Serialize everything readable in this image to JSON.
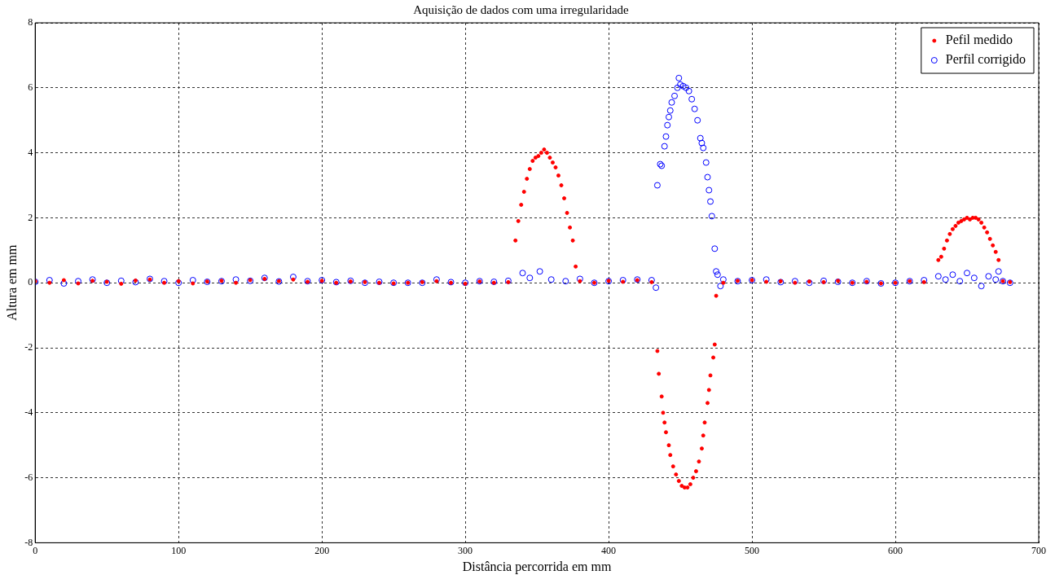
{
  "chart_data": {
    "type": "scatter",
    "title": "Aquisição de dados com uma irregularidade",
    "xlabel": "Distância percorrida em mm",
    "ylabel": "Altura em mm",
    "xlim": [
      0,
      700
    ],
    "xticks": [
      0,
      100,
      200,
      300,
      400,
      500,
      600,
      700
    ],
    "ylim": [
      -8,
      8
    ],
    "yticks": [
      -8,
      -6,
      -4,
      -2,
      0,
      2,
      4,
      6,
      8
    ],
    "grid": true,
    "legend": "top right",
    "marker": "circle",
    "series": [
      {
        "name": "Pefil medido",
        "color": "#ff0000",
        "x": [
          0,
          10,
          20,
          30,
          40,
          50,
          60,
          70,
          80,
          90,
          100,
          110,
          120,
          130,
          140,
          150,
          160,
          170,
          180,
          190,
          200,
          210,
          220,
          230,
          240,
          250,
          260,
          270,
          280,
          290,
          300,
          310,
          320,
          330,
          335,
          337,
          339,
          341,
          343,
          345,
          347,
          349,
          351,
          353,
          355,
          357,
          359,
          361,
          363,
          365,
          367,
          369,
          371,
          373,
          375,
          377,
          380,
          390,
          400,
          410,
          420,
          430,
          434,
          435,
          437,
          438,
          439,
          440,
          442,
          443,
          445,
          447,
          449,
          451,
          453,
          455,
          457,
          459,
          461,
          463,
          465,
          466,
          467,
          469,
          470,
          471,
          473,
          474,
          475,
          480,
          490,
          500,
          510,
          520,
          530,
          540,
          550,
          560,
          570,
          580,
          590,
          600,
          610,
          620,
          630,
          632,
          634,
          636,
          638,
          640,
          642,
          644,
          646,
          648,
          650,
          652,
          654,
          656,
          658,
          660,
          662,
          664,
          666,
          668,
          670,
          672,
          675,
          680
        ],
        "values": [
          0.05,
          0.0,
          0.08,
          -0.02,
          0.06,
          0.03,
          -0.03,
          0.07,
          0.1,
          0.0,
          0.05,
          -0.02,
          0.04,
          0.06,
          0.0,
          0.08,
          0.12,
          0.05,
          0.1,
          0.03,
          0.06,
          0.0,
          0.04,
          0.02,
          0.0,
          -0.02,
          0.0,
          0.02,
          0.05,
          0.0,
          -0.03,
          0.04,
          0.0,
          0.02,
          1.3,
          1.9,
          2.4,
          2.8,
          3.2,
          3.5,
          3.75,
          3.85,
          3.9,
          4.0,
          4.1,
          4.0,
          3.85,
          3.7,
          3.55,
          3.3,
          3.0,
          2.6,
          2.15,
          1.7,
          1.3,
          0.5,
          0.05,
          0.0,
          0.06,
          0.03,
          0.08,
          0.02,
          -2.1,
          -2.8,
          -3.5,
          -4.0,
          -4.3,
          -4.6,
          -5.0,
          -5.3,
          -5.65,
          -5.9,
          -6.1,
          -6.25,
          -6.3,
          -6.3,
          -6.2,
          -6.0,
          -5.8,
          -5.5,
          -5.1,
          -4.7,
          -4.3,
          -3.7,
          -3.3,
          -2.85,
          -2.3,
          -1.9,
          -0.4,
          0.0,
          0.06,
          0.08,
          0.03,
          0.05,
          0.0,
          0.04,
          0.02,
          0.06,
          0.0,
          0.03,
          -0.02,
          0.0,
          0.05,
          0.02,
          0.7,
          0.8,
          1.05,
          1.3,
          1.5,
          1.65,
          1.75,
          1.85,
          1.9,
          1.95,
          2.0,
          1.95,
          2.0,
          2.0,
          1.95,
          1.85,
          1.7,
          1.55,
          1.35,
          1.15,
          0.95,
          0.7,
          0.05,
          0.02
        ]
      },
      {
        "name": "Perfil corrigido",
        "color": "#0000ff",
        "x": [
          0,
          10,
          20,
          30,
          40,
          50,
          60,
          70,
          80,
          90,
          100,
          110,
          120,
          130,
          140,
          150,
          160,
          170,
          180,
          190,
          200,
          210,
          220,
          230,
          240,
          250,
          260,
          270,
          280,
          290,
          300,
          310,
          320,
          330,
          340,
          345,
          352,
          360,
          370,
          380,
          390,
          400,
          410,
          420,
          430,
          433,
          434,
          436,
          437,
          439,
          440,
          441,
          442,
          443,
          444,
          446,
          448,
          449,
          450,
          452,
          454,
          456,
          458,
          460,
          462,
          464,
          465,
          466,
          468,
          469,
          470,
          471,
          472,
          474,
          475,
          476,
          478,
          480,
          490,
          500,
          510,
          520,
          530,
          540,
          550,
          560,
          570,
          580,
          590,
          600,
          610,
          620,
          630,
          635,
          640,
          645,
          650,
          655,
          660,
          665,
          670,
          672,
          675,
          680
        ],
        "values": [
          0.03,
          0.08,
          -0.02,
          0.05,
          0.1,
          0.0,
          0.06,
          0.02,
          0.12,
          0.05,
          0.0,
          0.08,
          0.03,
          0.05,
          0.1,
          0.06,
          0.15,
          0.04,
          0.18,
          0.05,
          0.08,
          0.02,
          0.06,
          0.0,
          0.03,
          0.0,
          0.0,
          0.0,
          0.1,
          0.02,
          0.0,
          0.05,
          0.03,
          0.06,
          0.3,
          0.15,
          0.35,
          0.1,
          0.05,
          0.12,
          0.0,
          0.05,
          0.08,
          0.1,
          0.08,
          -0.15,
          3.0,
          3.65,
          3.6,
          4.2,
          4.5,
          4.85,
          5.1,
          5.3,
          5.55,
          5.75,
          6.0,
          6.3,
          6.1,
          6.05,
          6.0,
          5.9,
          5.65,
          5.35,
          5.0,
          4.45,
          4.3,
          4.15,
          3.7,
          3.25,
          2.85,
          2.5,
          2.05,
          1.05,
          0.35,
          0.25,
          -0.1,
          0.1,
          0.05,
          0.08,
          0.1,
          0.02,
          0.05,
          0.0,
          0.06,
          0.03,
          0.0,
          0.05,
          -0.02,
          0.0,
          0.05,
          0.08,
          0.2,
          0.1,
          0.25,
          0.05,
          0.3,
          0.15,
          -0.1,
          0.2,
          0.1,
          0.35,
          0.05,
          0.0
        ]
      }
    ]
  }
}
